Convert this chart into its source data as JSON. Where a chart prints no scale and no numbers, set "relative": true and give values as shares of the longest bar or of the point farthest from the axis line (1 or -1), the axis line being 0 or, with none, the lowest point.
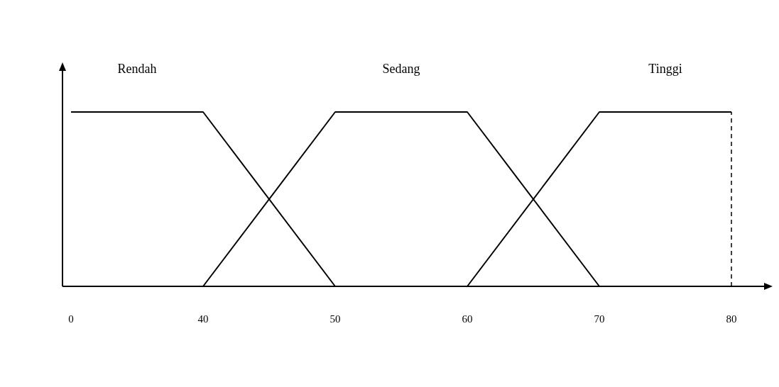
{
  "chart_data": {
    "type": "line",
    "relative": true,
    "categories": [
      "0",
      "40",
      "50",
      "60",
      "70",
      "80"
    ],
    "series": [
      {
        "name": "Rendah",
        "color": "#000000",
        "values": [
          1,
          1,
          0,
          null,
          null,
          null
        ]
      },
      {
        "name": "Sedang",
        "color": "#000000",
        "values": [
          null,
          0,
          1,
          1,
          0,
          null
        ]
      },
      {
        "name": "Tinggi",
        "color": "#000000",
        "values": [
          null,
          null,
          null,
          0,
          1,
          1
        ]
      }
    ],
    "ref_lines": [
      {
        "axis": "x",
        "value": "80",
        "line_style": "dashed",
        "color": "#000000"
      }
    ],
    "marker": "none",
    "grid": false,
    "legend": false
  }
}
